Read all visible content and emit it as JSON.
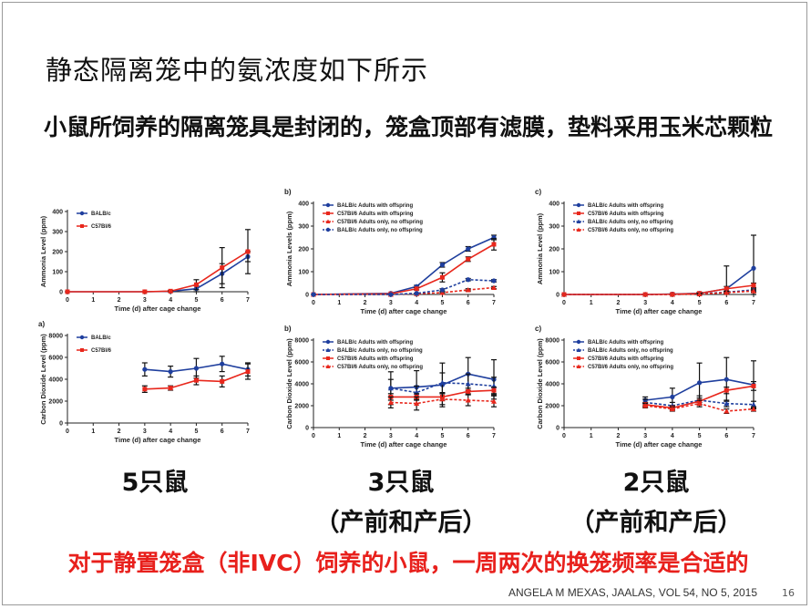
{
  "slide": {
    "title": "静态隔离笼中的氨浓度如下所示",
    "subtitle": "小鼠所饲养的隔离笼具是封闭的，笼盒顶部有滤膜，垫料采用玉米芯颗粒",
    "captions": [
      "5只鼠",
      "3只鼠\n（产前和产后）",
      "2只鼠\n（产前和产后）"
    ],
    "conclusion": "对于静置笼盒（非IVC）饲养的小鼠，一周两次的换笼频率是合适的",
    "citation": "ANGELA M MEXAS, JAALAS, VOL 54, NO 5, 2015",
    "page_number": "16"
  },
  "colors": {
    "blue": "#1f3f9e",
    "red": "#e8271c",
    "conclusion": "#e8201c"
  },
  "chart_data": [
    {
      "type": "line",
      "label": "",
      "xlabel": "Time (d) after cage change",
      "ylabel": "Ammonia Level (ppm)",
      "xlim": [
        0,
        7
      ],
      "ylim": [
        0,
        400
      ],
      "xticks": [
        0,
        1,
        2,
        3,
        4,
        5,
        6,
        7
      ],
      "yticks": [
        0,
        100,
        200,
        300,
        400
      ],
      "legend_position": "top-left",
      "series": [
        {
          "name": "BALB/c",
          "color": "#1f3f9e",
          "dashed": false,
          "marker": "circle",
          "x": [
            0,
            3,
            4,
            5,
            6,
            7
          ],
          "y": [
            0,
            0,
            2,
            15,
            90,
            175
          ],
          "err": [
            0,
            0,
            2,
            15,
            50,
            25
          ]
        },
        {
          "name": "C57Bl/6",
          "color": "#e8271c",
          "dashed": false,
          "marker": "square",
          "x": [
            0,
            3,
            4,
            5,
            6,
            7
          ],
          "y": [
            0,
            0,
            3,
            35,
            120,
            200
          ],
          "err": [
            0,
            0,
            3,
            25,
            100,
            110
          ]
        }
      ]
    },
    {
      "type": "line",
      "label": "b)",
      "xlabel": "Time (d) after cage change",
      "ylabel": "Ammonia Levels (ppm)",
      "xlim": [
        0,
        7
      ],
      "ylim": [
        0,
        400
      ],
      "xticks": [
        0,
        1,
        2,
        3,
        4,
        5,
        6,
        7
      ],
      "yticks": [
        0,
        100,
        200,
        300,
        400
      ],
      "legend_position": "top-left",
      "series": [
        {
          "name": "BALB/c Adults with offspring",
          "color": "#1f3f9e",
          "dashed": false,
          "marker": "circle",
          "x": [
            0,
            3,
            4,
            5,
            6,
            7
          ],
          "y": [
            0,
            5,
            35,
            130,
            200,
            250
          ],
          "err": [
            0,
            0,
            5,
            10,
            10,
            10
          ]
        },
        {
          "name": "C57Bl/6 Adults with offspring",
          "color": "#e8271c",
          "dashed": false,
          "marker": "square",
          "x": [
            0,
            3,
            4,
            5,
            6,
            7
          ],
          "y": [
            0,
            3,
            25,
            75,
            155,
            220
          ],
          "err": [
            0,
            0,
            5,
            20,
            10,
            25
          ]
        },
        {
          "name": "C57Bl/6 Adults only, no offspring",
          "color": "#e8271c",
          "dashed": true,
          "marker": "triangle",
          "x": [
            0,
            3,
            4,
            5,
            6,
            7
          ],
          "y": [
            0,
            0,
            3,
            8,
            20,
            30
          ],
          "err": [
            0,
            0,
            0,
            3,
            5,
            5
          ]
        },
        {
          "name": "BALB/c Adults only, no offspring",
          "color": "#1f3f9e",
          "dashed": true,
          "marker": "circle",
          "x": [
            0,
            3,
            4,
            5,
            6,
            7
          ],
          "y": [
            0,
            0,
            5,
            20,
            65,
            60
          ],
          "err": [
            0,
            0,
            0,
            5,
            5,
            5
          ]
        }
      ]
    },
    {
      "type": "line",
      "label": "c)",
      "xlabel": "Time (d) after cage change",
      "ylabel": "Ammonia Level (ppm)",
      "xlim": [
        0,
        7
      ],
      "ylim": [
        0,
        400
      ],
      "xticks": [
        0,
        1,
        2,
        3,
        4,
        5,
        6,
        7
      ],
      "yticks": [
        0,
        100,
        200,
        300,
        400
      ],
      "legend_position": "top-left",
      "series": [
        {
          "name": "BALB/c Adults with offspring",
          "color": "#1f3f9e",
          "dashed": false,
          "marker": "circle",
          "x": [
            0,
            3,
            4,
            5,
            6,
            7
          ],
          "y": [
            0,
            0,
            2,
            5,
            25,
            115
          ],
          "err": [
            0,
            0,
            2,
            5,
            100,
            145
          ]
        },
        {
          "name": "C57Bl/6 Adults with offspring",
          "color": "#e8271c",
          "dashed": false,
          "marker": "square",
          "x": [
            0,
            3,
            4,
            5,
            6,
            7
          ],
          "y": [
            0,
            0,
            1,
            5,
            25,
            40
          ],
          "err": [
            0,
            0,
            1,
            3,
            10,
            10
          ]
        },
        {
          "name": "BALB/c Adults only, no offspring",
          "color": "#1f3f9e",
          "dashed": true,
          "marker": "triangle",
          "x": [
            0,
            3,
            4,
            5,
            6,
            7
          ],
          "y": [
            0,
            0,
            0,
            3,
            10,
            20
          ],
          "err": [
            0,
            0,
            0,
            2,
            5,
            5
          ]
        },
        {
          "name": "C57Bl/6 Adults only, no offspring",
          "color": "#e8271c",
          "dashed": true,
          "marker": "triangle",
          "x": [
            0,
            3,
            4,
            5,
            6,
            7
          ],
          "y": [
            0,
            0,
            0,
            2,
            8,
            15
          ],
          "err": [
            0,
            0,
            0,
            2,
            5,
            5
          ]
        }
      ]
    },
    {
      "type": "line",
      "label": "a)",
      "xlabel": "Time (d) after cage change",
      "ylabel": "Carbon Dioxide Level (ppm)",
      "xlim": [
        0,
        7
      ],
      "ylim": [
        0,
        8000
      ],
      "xticks": [
        0,
        1,
        2,
        3,
        4,
        5,
        6,
        7
      ],
      "yticks": [
        0,
        2000,
        4000,
        6000,
        8000
      ],
      "legend_position": "top-left",
      "series": [
        {
          "name": "BALB/c",
          "color": "#1f3f9e",
          "dashed": false,
          "marker": "circle",
          "x": [
            3,
            4,
            5,
            6,
            7
          ],
          "y": [
            4900,
            4700,
            5000,
            5400,
            4900
          ],
          "err": [
            600,
            500,
            900,
            700,
            600
          ]
        },
        {
          "name": "C57Bl/6",
          "color": "#e8271c",
          "dashed": false,
          "marker": "square",
          "x": [
            3,
            4,
            5,
            6,
            7
          ],
          "y": [
            3100,
            3200,
            3900,
            3800,
            4700
          ],
          "err": [
            300,
            200,
            400,
            500,
            700
          ]
        }
      ]
    },
    {
      "type": "line",
      "label": "b)",
      "xlabel": "Time (d) after cage change",
      "ylabel": "Carbon Dioxide Level (ppm)",
      "xlim": [
        0,
        7
      ],
      "ylim": [
        0,
        8000
      ],
      "xticks": [
        0,
        1,
        2,
        3,
        4,
        5,
        6,
        7
      ],
      "yticks": [
        0,
        2000,
        4000,
        6000,
        8000
      ],
      "legend_position": "top-left",
      "series": [
        {
          "name": "BALB/c Adults with offspring",
          "color": "#1f3f9e",
          "dashed": false,
          "marker": "circle",
          "x": [
            3,
            4,
            5,
            6,
            7
          ],
          "y": [
            3600,
            3700,
            3900,
            4900,
            4400
          ],
          "err": [
            1500,
            1500,
            2000,
            1500,
            1800
          ]
        },
        {
          "name": "BALB/c Adults only, no offspring",
          "color": "#1f3f9e",
          "dashed": true,
          "marker": "triangle",
          "x": [
            3,
            4,
            5,
            6,
            7
          ],
          "y": [
            3600,
            3200,
            4100,
            4000,
            3800
          ],
          "err": [
            800,
            600,
            900,
            900,
            800
          ]
        },
        {
          "name": "C57Bl/6 Adults with offspring",
          "color": "#e8271c",
          "dashed": false,
          "marker": "square",
          "x": [
            3,
            4,
            5,
            6,
            7
          ],
          "y": [
            2800,
            2800,
            2800,
            3300,
            3400
          ],
          "err": [
            300,
            300,
            300,
            300,
            300
          ]
        },
        {
          "name": "C57Bl/6 Adults only, no offspring",
          "color": "#e8271c",
          "dashed": true,
          "marker": "triangle",
          "x": [
            3,
            4,
            5,
            6,
            7
          ],
          "y": [
            2300,
            2200,
            2600,
            2500,
            2400
          ],
          "err": [
            500,
            600,
            500,
            500,
            500
          ]
        }
      ]
    },
    {
      "type": "line",
      "label": "c)",
      "xlabel": "Time (d) after cage change",
      "ylabel": "Carbon Dioxide Level (ppm)",
      "xlim": [
        0,
        7
      ],
      "ylim": [
        0,
        8000
      ],
      "xticks": [
        0,
        1,
        2,
        3,
        4,
        5,
        6,
        7
      ],
      "yticks": [
        0,
        2000,
        4000,
        6000,
        8000
      ],
      "legend_position": "top-left",
      "series": [
        {
          "name": "BALB/c Adults with offspring",
          "color": "#1f3f9e",
          "dashed": false,
          "marker": "circle",
          "x": [
            3,
            4,
            5,
            6,
            7
          ],
          "y": [
            2500,
            2800,
            4100,
            4400,
            3900
          ],
          "err": [
            300,
            800,
            1800,
            2000,
            2200
          ]
        },
        {
          "name": "BALB/c Adults only, no offspring",
          "color": "#1f3f9e",
          "dashed": true,
          "marker": "triangle",
          "x": [
            3,
            4,
            5,
            6,
            7
          ],
          "y": [
            2300,
            2000,
            2500,
            2200,
            2100
          ],
          "err": [
            300,
            300,
            400,
            300,
            300
          ]
        },
        {
          "name": "C57Bl/6 Adults with offspring",
          "color": "#e8271c",
          "dashed": false,
          "marker": "square",
          "x": [
            3,
            4,
            5,
            6,
            7
          ],
          "y": [
            2100,
            1800,
            2400,
            3400,
            3800
          ],
          "err": [
            200,
            200,
            300,
            300,
            400
          ]
        },
        {
          "name": "C57Bl/6 Adults only, no offspring",
          "color": "#e8271c",
          "dashed": true,
          "marker": "triangle",
          "x": [
            3,
            4,
            5,
            6,
            7
          ],
          "y": [
            2000,
            1700,
            2200,
            1500,
            1700
          ],
          "err": [
            200,
            200,
            300,
            200,
            200
          ]
        }
      ]
    }
  ]
}
